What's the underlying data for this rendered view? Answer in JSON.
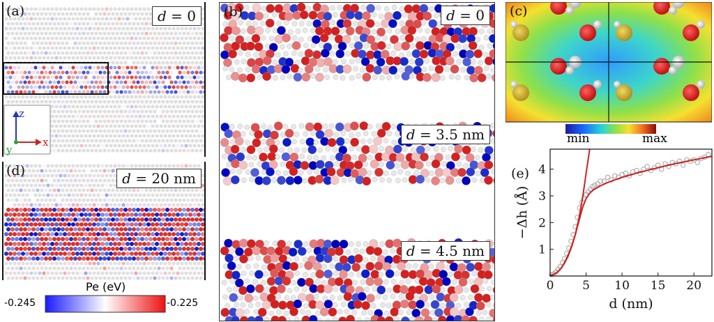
{
  "panel_a": {
    "label": "(a)",
    "d_var": "d",
    "d_text": " = 0",
    "axis_z": "z",
    "axis_y": "y",
    "axis_x": "x"
  },
  "panel_b": {
    "label": "(b)",
    "d_var": "d",
    "rows": [
      " = 0",
      " = 3.5 nm",
      " = 4.5 nm"
    ]
  },
  "panel_c": {
    "label": "(c)",
    "min_label": "min",
    "max_label": "max"
  },
  "panel_d": {
    "label": "(d)",
    "d_var": "d",
    "d_text": " = 20 nm",
    "colorbar_title": "Pe (eV)",
    "cb_min": "-0.245",
    "cb_max": "-0.225"
  },
  "panel_e": {
    "label": "(e)"
  },
  "colors": {
    "red": "#d42020",
    "blue": "#2030cc",
    "fit": "#cc2222",
    "marker": "#aaaaaa"
  },
  "chart_data": {
    "type": "scatter",
    "xlabel": "d (nm)",
    "ylabel": "−Δh (Å)",
    "xlim": [
      0,
      22.5
    ],
    "ylim": [
      0,
      4.75
    ],
    "xticks": [
      0,
      5,
      10,
      15,
      20
    ],
    "yticks": [
      1,
      2,
      3,
      4
    ],
    "points": {
      "x": [
        0.2,
        0.5,
        0.8,
        1.1,
        1.4,
        1.7,
        2.0,
        2.3,
        2.6,
        2.9,
        3.2,
        3.5,
        3.8,
        4.1,
        4.4,
        4.7,
        5.0,
        5.3,
        5.6,
        5.9,
        6.2,
        6.6,
        7.0,
        7.5,
        8.0,
        8.5,
        9.0,
        9.5,
        10.0,
        10.5,
        11.0,
        11.5,
        12.0,
        12.5,
        13.0,
        13.5,
        14.0,
        14.5,
        15.0,
        15.5,
        16.0,
        16.5,
        17.0,
        17.5,
        18.0,
        18.5,
        19.0,
        19.5,
        20.0,
        20.5,
        21.0,
        21.5,
        22.0
      ],
      "y": [
        0.05,
        0.08,
        0.15,
        0.25,
        0.35,
        0.5,
        0.65,
        0.85,
        1.05,
        1.3,
        1.55,
        1.85,
        2.2,
        2.55,
        2.75,
        2.9,
        3.05,
        3.15,
        3.25,
        3.35,
        3.4,
        3.45,
        3.55,
        3.55,
        3.7,
        3.6,
        3.75,
        3.7,
        3.8,
        3.85,
        3.75,
        3.9,
        3.95,
        3.85,
        4.0,
        4.1,
        3.95,
        4.05,
        4.15,
        4.0,
        4.2,
        4.1,
        4.25,
        4.2,
        4.3,
        4.15,
        4.35,
        4.3,
        4.35,
        4.25,
        4.4,
        4.45,
        4.55
      ]
    },
    "fit_small_d": {
      "x": [
        0,
        0.5,
        1,
        1.5,
        2,
        2.5,
        3,
        3.5,
        4,
        4.5,
        5,
        5.5
      ],
      "y": [
        0.02,
        0.06,
        0.14,
        0.28,
        0.48,
        0.75,
        1.1,
        1.55,
        2.15,
        2.9,
        3.85,
        4.9
      ]
    },
    "fit_large_d": {
      "x": [
        0,
        0.5,
        1,
        1.5,
        2,
        2.5,
        3,
        3.5,
        4,
        4.5,
        5,
        5.5,
        6,
        7,
        8,
        9,
        10,
        12,
        14,
        16,
        18,
        20,
        22.5
      ],
      "y": [
        0.02,
        0.06,
        0.14,
        0.28,
        0.5,
        0.78,
        1.12,
        1.55,
        2.05,
        2.55,
        2.9,
        3.1,
        3.22,
        3.38,
        3.5,
        3.6,
        3.69,
        3.85,
        3.99,
        4.12,
        4.24,
        4.35,
        4.48
      ]
    }
  }
}
